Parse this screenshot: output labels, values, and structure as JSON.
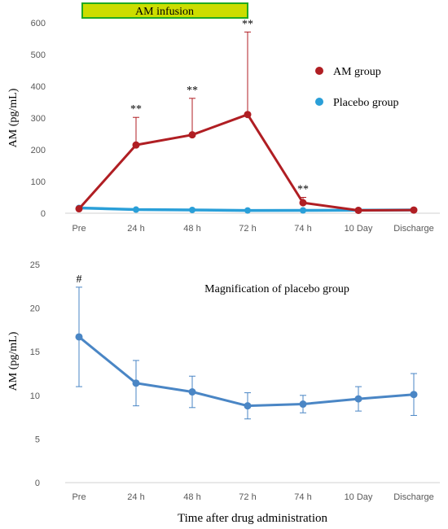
{
  "figure": {
    "xlabel": "Time after drug administration"
  },
  "chart_data": [
    {
      "type": "line",
      "categories": [
        "Pre",
        "24 h",
        "48 h",
        "72 h",
        "74 h",
        "10 Day",
        "Discharge"
      ],
      "ylabel": "AM (pg/mL)",
      "ylim": [
        0,
        600
      ],
      "yticks": [
        0,
        100,
        200,
        300,
        400,
        500,
        600
      ],
      "grid": false,
      "legend_position": "right",
      "infusion_bar": {
        "label": "AM infusion",
        "span": [
          "Pre",
          "72 h"
        ],
        "fill": "#ccdd00",
        "stroke": "#22aa22"
      },
      "series": [
        {
          "name": "AM group",
          "color": "#b01e23",
          "values": [
            14,
            215,
            247,
            311,
            33,
            9,
            10
          ],
          "error_upper": [
            null,
            302,
            362,
            571,
            50,
            null,
            null
          ],
          "annotations": [
            "",
            "**",
            "**",
            "**",
            "**",
            "",
            ""
          ]
        },
        {
          "name": "Placebo group",
          "color": "#2a9fd8",
          "values": [
            16.7,
            11.4,
            10.4,
            8.8,
            9.0,
            9.6,
            10.1
          ]
        }
      ]
    },
    {
      "type": "line",
      "title": "Magnification of placebo group",
      "categories": [
        "Pre",
        "24 h",
        "48 h",
        "72 h",
        "74 h",
        "10 Day",
        "Discharge"
      ],
      "ylabel": "AM (pg/mL)",
      "ylim": [
        0,
        25
      ],
      "yticks": [
        0,
        5,
        10,
        15,
        20,
        25
      ],
      "grid": false,
      "series": [
        {
          "color": "#4a86c5",
          "values": [
            16.7,
            11.4,
            10.4,
            8.8,
            9.0,
            9.6,
            10.1
          ],
          "error_low": [
            11.0,
            8.8,
            8.6,
            7.3,
            8.0,
            8.2,
            7.7
          ],
          "error_high": [
            22.4,
            14.0,
            12.2,
            10.3,
            10.0,
            11.0,
            12.5
          ],
          "annotations": [
            "#",
            "",
            "",
            "",
            "",
            "",
            ""
          ]
        }
      ]
    }
  ]
}
